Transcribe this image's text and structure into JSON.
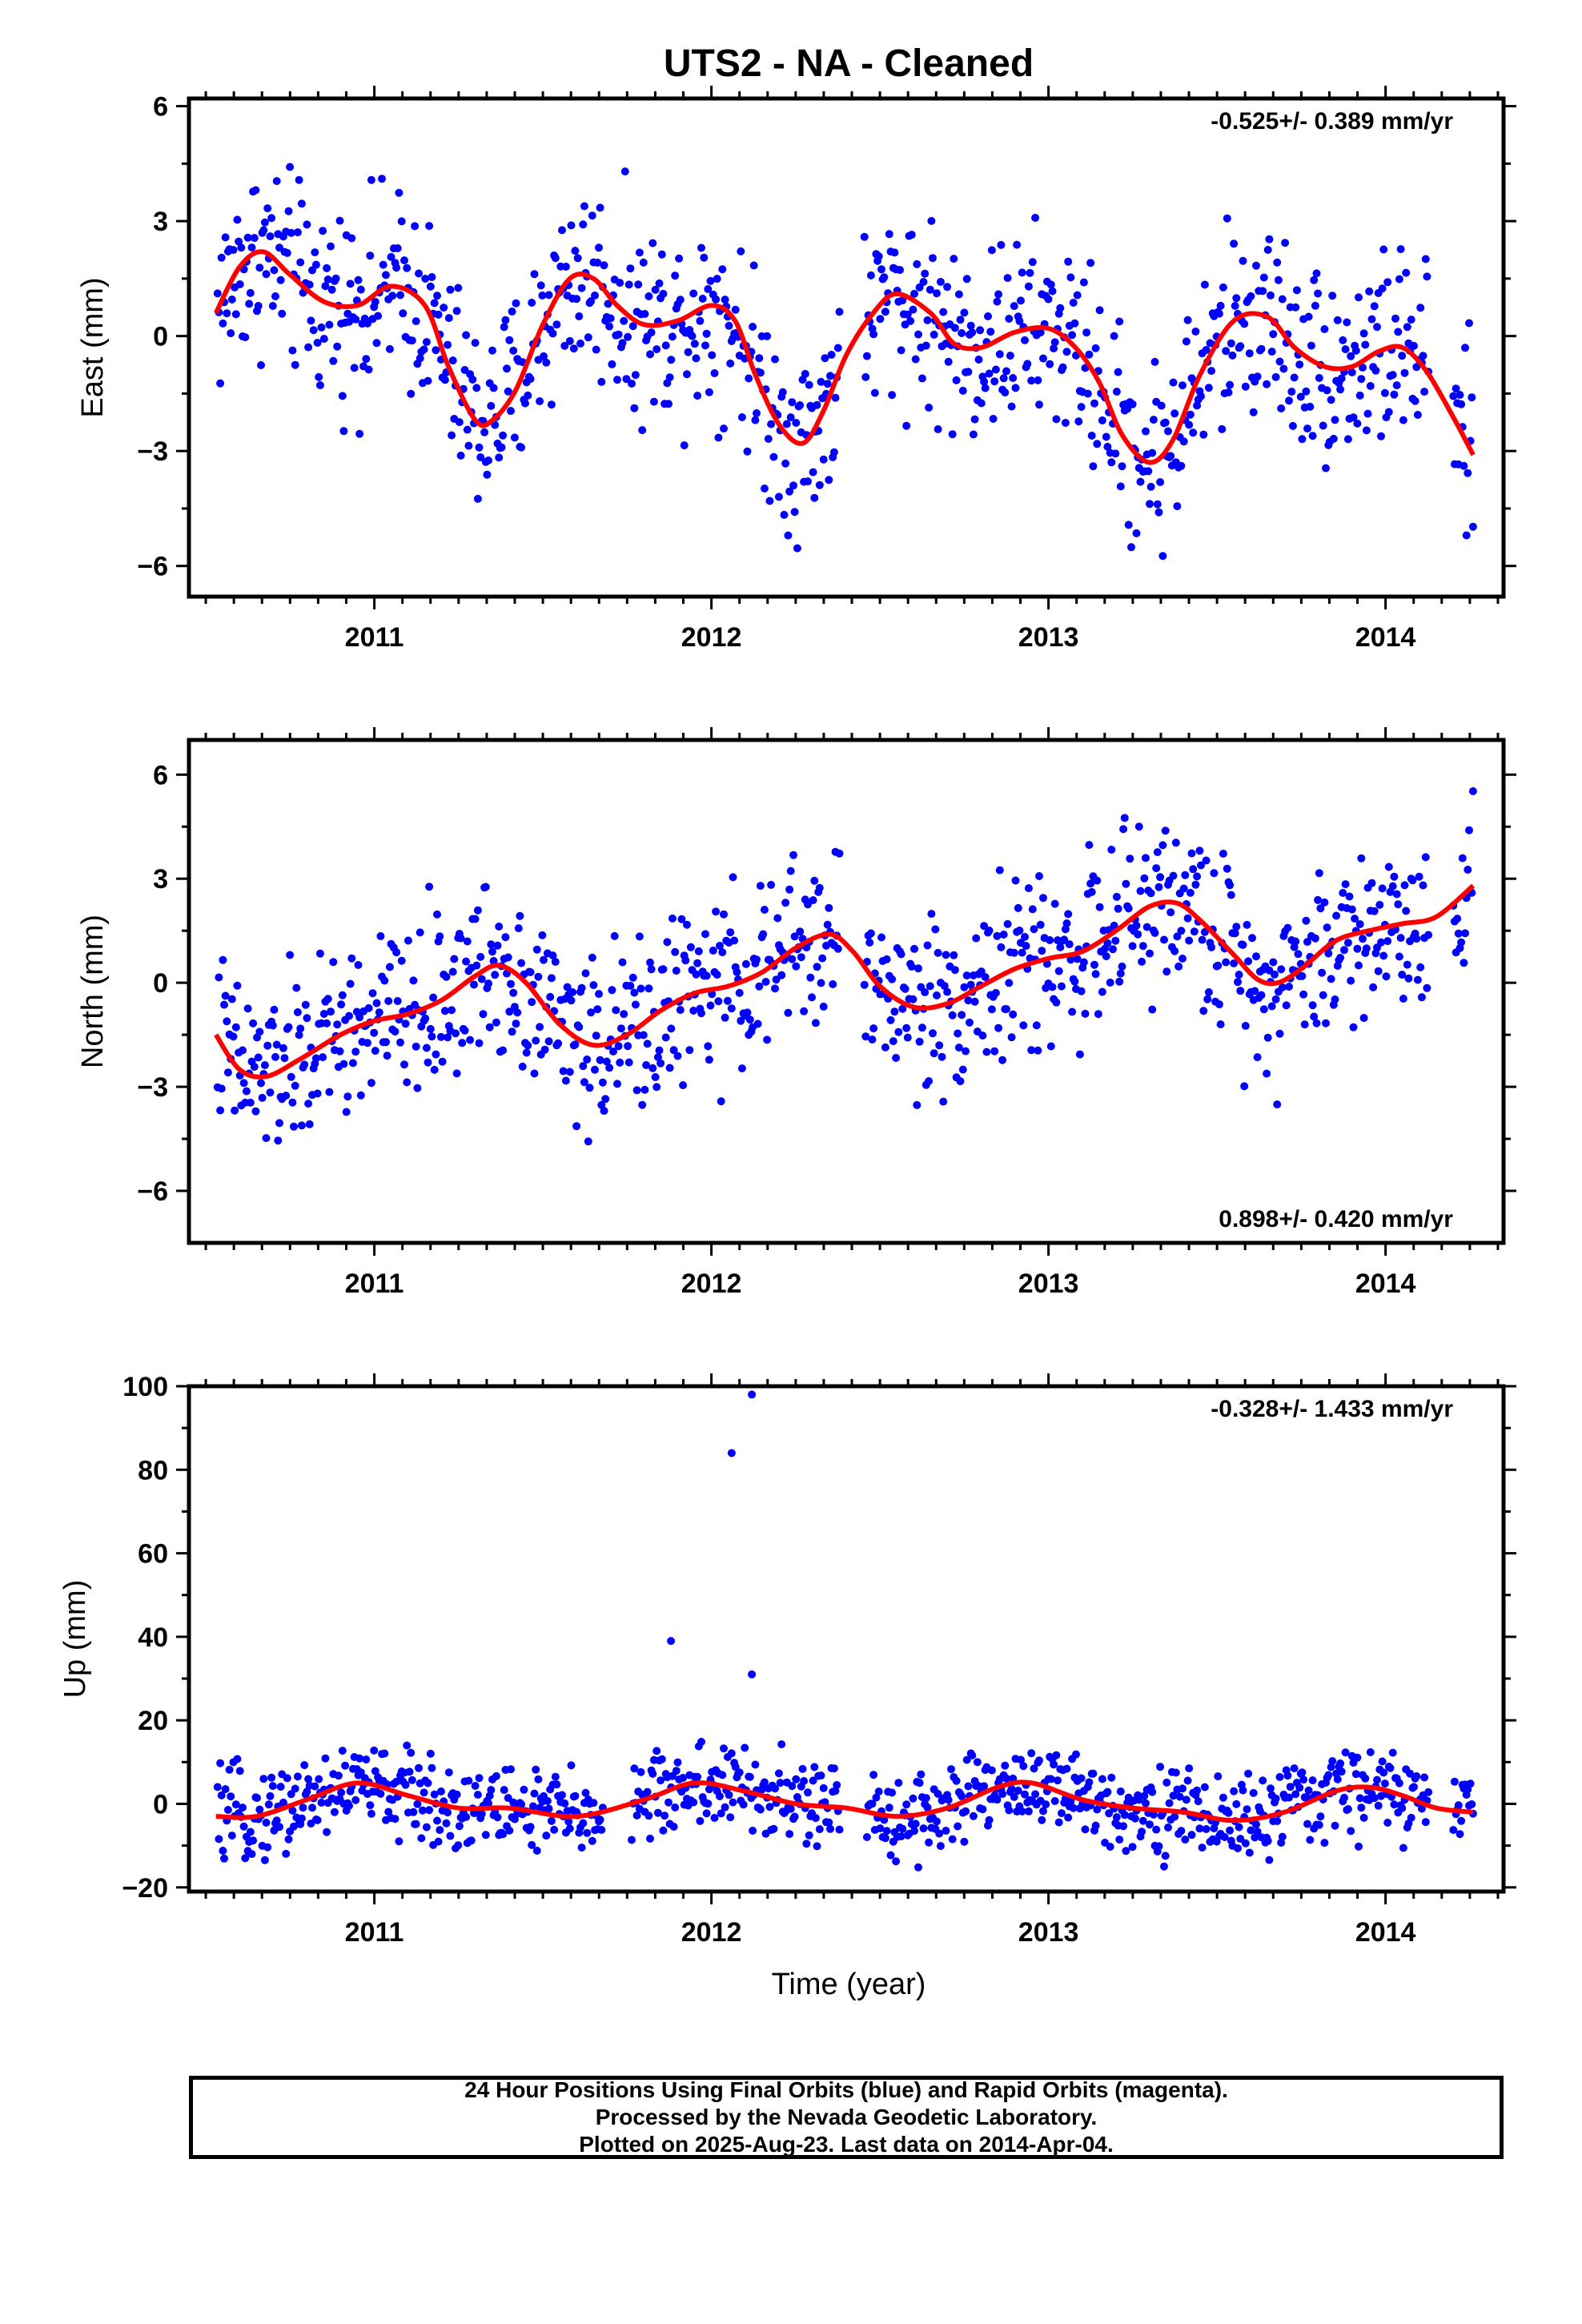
{
  "figure": {
    "title": "UTS2  - NA - Cleaned",
    "xlabel": "Time (year)",
    "footer": [
      "24 Hour Positions Using Final Orbits (blue) and Rapid Orbits (magenta).",
      "Processed by the Nevada Geodetic Laboratory.",
      "Plotted on 2025-Aug-23. Last data on 2014-Apr-04."
    ],
    "colors": {
      "points": "#0000ff",
      "model": "#ff0000",
      "frame": "#000000"
    }
  },
  "chart_data": [
    {
      "type": "scatter",
      "ylabel": "East (mm)",
      "rate_text": "-0.525+/- 0.389 mm/yr",
      "rate_position": "top-right",
      "xlim": [
        2010.45,
        2014.35
      ],
      "ylim": [
        -6.8,
        6.2
      ],
      "xticks": [
        2011,
        2012,
        2013,
        2014
      ],
      "yticks": [
        -6,
        -3,
        0,
        3,
        6
      ],
      "ytick_labels": [
        "−6",
        "−3",
        "0",
        "3",
        "6"
      ],
      "series": [
        {
          "role": "model",
          "x": [
            2010.53,
            2010.6,
            2010.67,
            2010.75,
            2010.85,
            2010.95,
            2011.05,
            2011.15,
            2011.22,
            2011.3,
            2011.35,
            2011.42,
            2011.5,
            2011.58,
            2011.65,
            2011.72,
            2011.8,
            2011.9,
            2012.0,
            2012.07,
            2012.13,
            2012.2,
            2012.27,
            2012.33,
            2012.4,
            2012.48,
            2012.55,
            2012.65,
            2012.72,
            2012.8,
            2012.9,
            2013.0,
            2013.08,
            2013.15,
            2013.22,
            2013.3,
            2013.37,
            2013.45,
            2013.55,
            2013.65,
            2013.73,
            2013.82,
            2013.9,
            2013.98,
            2014.05,
            2014.12,
            2014.2,
            2014.26
          ],
          "y": [
            0.6,
            1.8,
            2.2,
            1.6,
            0.9,
            0.8,
            1.3,
            0.8,
            -0.8,
            -2.2,
            -2.2,
            -1.4,
            0.3,
            1.5,
            1.5,
            0.8,
            0.3,
            0.4,
            0.8,
            0.4,
            -1.0,
            -2.3,
            -2.8,
            -2.0,
            -0.5,
            0.6,
            1.1,
            0.6,
            -0.2,
            -0.3,
            0.1,
            0.2,
            -0.3,
            -1.2,
            -2.6,
            -3.3,
            -2.7,
            -1.0,
            0.4,
            0.5,
            -0.3,
            -0.8,
            -0.8,
            -0.4,
            -0.3,
            -0.9,
            -2.1,
            -3.1
          ]
        }
      ]
    },
    {
      "type": "scatter",
      "ylabel": "North (mm)",
      "rate_text": "0.898+/- 0.420 mm/yr",
      "rate_position": "bottom-right",
      "xlim": [
        2010.45,
        2014.35
      ],
      "ylim": [
        -7.5,
        7.0
      ],
      "xticks": [
        2011,
        2012,
        2013,
        2014
      ],
      "yticks": [
        -6,
        -3,
        0,
        3,
        6
      ],
      "ytick_labels": [
        "−6",
        "−3",
        "0",
        "3",
        "6"
      ],
      "series": [
        {
          "role": "model",
          "x": [
            2010.53,
            2010.6,
            2010.68,
            2010.78,
            2010.9,
            2011.0,
            2011.1,
            2011.2,
            2011.3,
            2011.37,
            2011.45,
            2011.55,
            2011.65,
            2011.75,
            2011.85,
            2011.95,
            2012.05,
            2012.15,
            2012.25,
            2012.35,
            2012.42,
            2012.5,
            2012.6,
            2012.7,
            2012.8,
            2012.9,
            2013.0,
            2013.1,
            2013.2,
            2013.3,
            2013.38,
            2013.45,
            2013.55,
            2013.62,
            2013.68,
            2013.75,
            2013.85,
            2013.95,
            2014.05,
            2014.15,
            2014.26
          ],
          "y": [
            -1.5,
            -2.5,
            -2.7,
            -2.2,
            -1.5,
            -1.1,
            -0.9,
            -0.5,
            0.2,
            0.5,
            0.0,
            -1.2,
            -1.8,
            -1.5,
            -0.8,
            -0.3,
            -0.1,
            0.3,
            1.0,
            1.4,
            0.9,
            -0.1,
            -0.7,
            -0.6,
            -0.1,
            0.4,
            0.7,
            0.9,
            1.5,
            2.2,
            2.3,
            1.8,
            0.8,
            0.1,
            0.0,
            0.4,
            1.2,
            1.5,
            1.7,
            1.9,
            2.8
          ]
        }
      ]
    },
    {
      "type": "scatter",
      "ylabel": "Up (mm)",
      "rate_text": "-0.328+/- 1.433 mm/yr",
      "rate_position": "top-right",
      "xlim": [
        2010.45,
        2014.35
      ],
      "ylim": [
        -21,
        100
      ],
      "xticks": [
        2011,
        2012,
        2013,
        2014
      ],
      "yticks": [
        -20,
        0,
        20,
        40,
        60,
        80,
        100
      ],
      "ytick_labels": [
        "−20",
        "0",
        "20",
        "40",
        "60",
        "80",
        "100"
      ],
      "series": [
        {
          "role": "model",
          "x": [
            2010.53,
            2010.65,
            2010.8,
            2010.95,
            2011.1,
            2011.25,
            2011.4,
            2011.6,
            2011.8,
            2011.95,
            2012.1,
            2012.25,
            2012.4,
            2012.55,
            2012.7,
            2012.85,
            2012.95,
            2013.1,
            2013.25,
            2013.4,
            2013.55,
            2013.7,
            2013.85,
            2013.95,
            2014.05,
            2014.15,
            2014.26
          ],
          "y": [
            -3,
            -3,
            1,
            5,
            2,
            -1,
            -1,
            -3,
            1,
            5,
            3,
            0,
            -1,
            -3,
            -1,
            4,
            5,
            1,
            -1,
            -2,
            -4,
            -2,
            3,
            4,
            2,
            -1,
            -2
          ]
        },
        {
          "role": "outliers",
          "x": [
            2011.88,
            2012.06,
            2012.12,
            2012.12
          ],
          "y": [
            39,
            84,
            98,
            31
          ]
        }
      ]
    }
  ]
}
